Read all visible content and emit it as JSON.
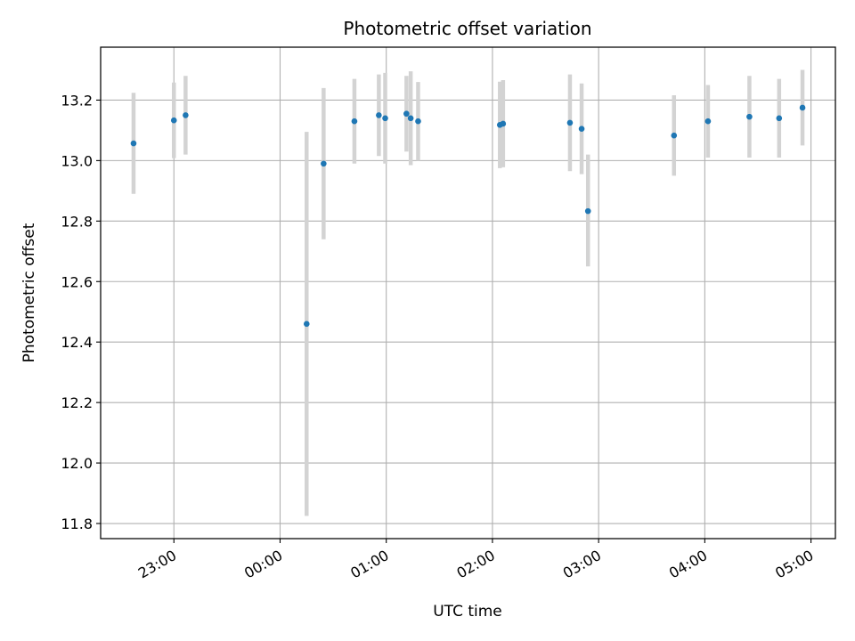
{
  "chart_data": {
    "type": "scatter",
    "title": "Photometric offset variation",
    "xlabel": "UTC time",
    "ylabel": "Photometric offset",
    "x_unit": "hours (UTC, relative to 00:00)",
    "xlim": [
      -1.69,
      5.23
    ],
    "ylim": [
      11.75,
      13.375
    ],
    "grid": true,
    "x_ticks": [
      {
        "value": -1,
        "label": "23:00"
      },
      {
        "value": 0,
        "label": "00:00"
      },
      {
        "value": 1,
        "label": "01:00"
      },
      {
        "value": 2,
        "label": "02:00"
      },
      {
        "value": 3,
        "label": "03:00"
      },
      {
        "value": 4,
        "label": "04:00"
      },
      {
        "value": 5,
        "label": "05:00"
      }
    ],
    "y_ticks": [
      {
        "value": 11.8,
        "label": "11.8"
      },
      {
        "value": 12.0,
        "label": "12.0"
      },
      {
        "value": 12.2,
        "label": "12.2"
      },
      {
        "value": 12.4,
        "label": "12.4"
      },
      {
        "value": 12.6,
        "label": "12.6"
      },
      {
        "value": 12.8,
        "label": "12.8"
      },
      {
        "value": 13.0,
        "label": "13.0"
      },
      {
        "value": 13.2,
        "label": "13.2"
      }
    ],
    "colors": {
      "point": "#1f77b4",
      "errorbar": "#d3d3d3",
      "grid": "#b0b0b0"
    },
    "points": [
      {
        "x": -1.38,
        "y": 13.057,
        "ylo": 12.89,
        "yhi": 13.224
      },
      {
        "x": -1.0,
        "y": 13.133,
        "ylo": 13.008,
        "yhi": 13.258
      },
      {
        "x": -0.89,
        "y": 13.15,
        "ylo": 13.02,
        "yhi": 13.28
      },
      {
        "x": 0.25,
        "y": 12.46,
        "ylo": 11.825,
        "yhi": 13.095
      },
      {
        "x": 0.41,
        "y": 12.99,
        "ylo": 12.74,
        "yhi": 13.24
      },
      {
        "x": 0.7,
        "y": 13.13,
        "ylo": 12.99,
        "yhi": 13.27
      },
      {
        "x": 0.93,
        "y": 13.15,
        "ylo": 13.015,
        "yhi": 13.285
      },
      {
        "x": 0.99,
        "y": 13.14,
        "ylo": 12.99,
        "yhi": 13.29
      },
      {
        "x": 1.19,
        "y": 13.155,
        "ylo": 13.03,
        "yhi": 13.28
      },
      {
        "x": 1.23,
        "y": 13.14,
        "ylo": 12.985,
        "yhi": 13.295
      },
      {
        "x": 1.3,
        "y": 13.13,
        "ylo": 13.0,
        "yhi": 13.26
      },
      {
        "x": 2.07,
        "y": 13.118,
        "ylo": 12.975,
        "yhi": 13.261
      },
      {
        "x": 2.1,
        "y": 13.122,
        "ylo": 12.978,
        "yhi": 13.266
      },
      {
        "x": 2.73,
        "y": 13.125,
        "ylo": 12.965,
        "yhi": 13.285
      },
      {
        "x": 2.84,
        "y": 13.105,
        "ylo": 12.955,
        "yhi": 13.255
      },
      {
        "x": 2.9,
        "y": 12.833,
        "ylo": 12.65,
        "yhi": 13.02
      },
      {
        "x": 3.71,
        "y": 13.083,
        "ylo": 12.95,
        "yhi": 13.216
      },
      {
        "x": 4.03,
        "y": 13.13,
        "ylo": 13.01,
        "yhi": 13.25
      },
      {
        "x": 4.42,
        "y": 13.145,
        "ylo": 13.01,
        "yhi": 13.28
      },
      {
        "x": 4.7,
        "y": 13.14,
        "ylo": 13.01,
        "yhi": 13.27
      },
      {
        "x": 4.92,
        "y": 13.175,
        "ylo": 13.05,
        "yhi": 13.3
      }
    ]
  }
}
